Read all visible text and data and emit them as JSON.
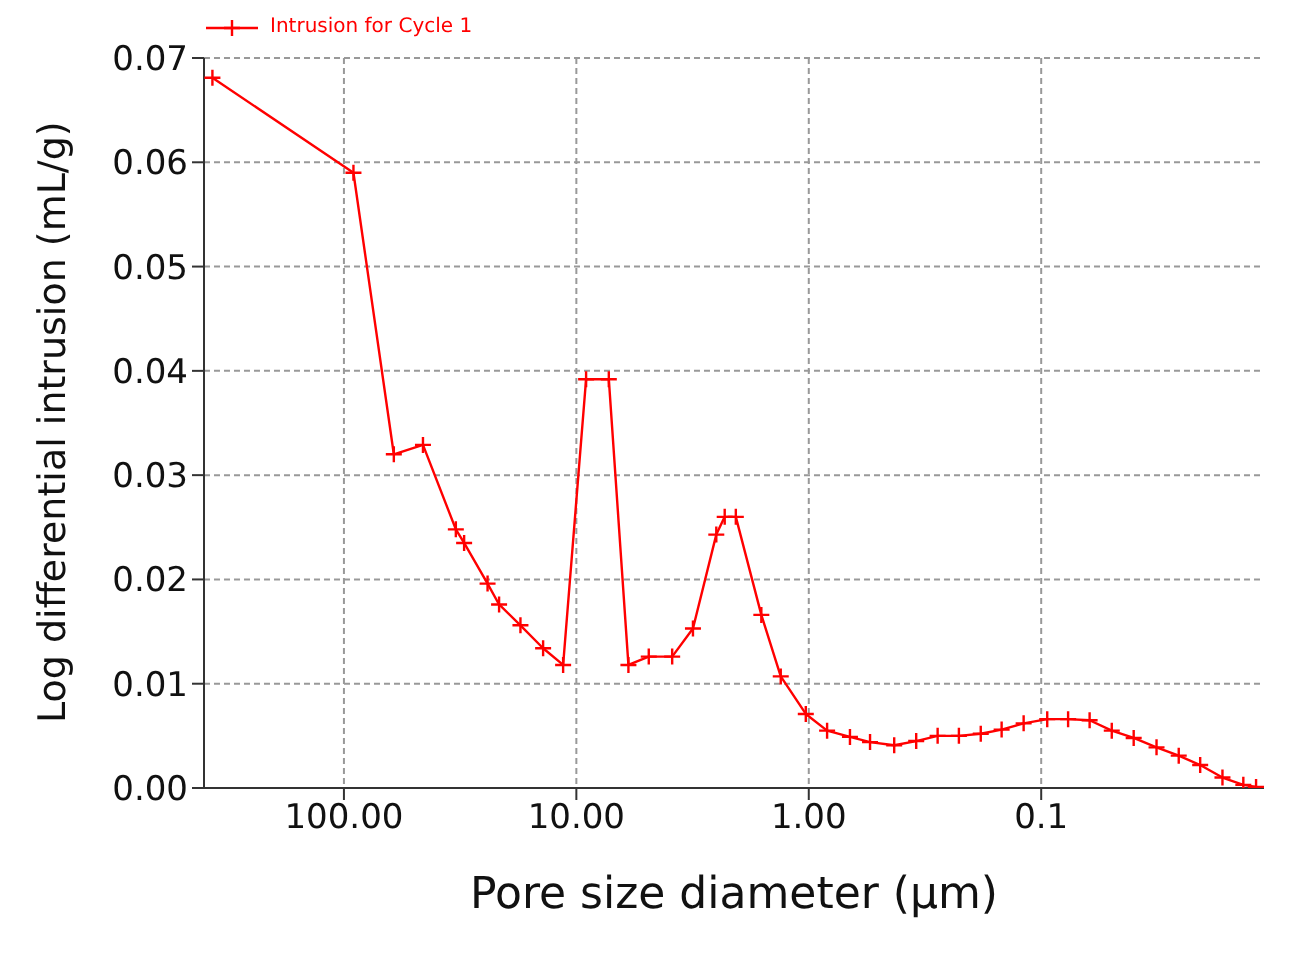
{
  "chart_data": {
    "type": "line",
    "xlabel": "Pore size diameter (μm)",
    "ylabel": "Log differential intrusion (mL/g)",
    "xlim": [
      400,
      0.011
    ],
    "log": "x",
    "xticks": [
      {
        "value": 100,
        "label": "100.00"
      },
      {
        "value": 10,
        "label": "10.00"
      },
      {
        "value": 1,
        "label": "1.00"
      },
      0.1
    ],
    "ylim": [
      0,
      0.07
    ],
    "yticks": [
      {
        "value": 0,
        "label": "0.00"
      },
      {
        "value": 0.01,
        "label": "0.01"
      },
      {
        "value": 0.02,
        "label": "0.02"
      },
      {
        "value": 0.03,
        "label": "0.03"
      },
      {
        "value": 0.04,
        "label": "0.04"
      },
      {
        "value": 0.05,
        "label": "0.05"
      },
      {
        "value": 0.06,
        "label": "0.06"
      },
      {
        "value": 0.07,
        "label": "0.07"
      }
    ],
    "grid": true,
    "legend": "top left",
    "marker": "cross",
    "line_style": "solid",
    "series": [
      {
        "name": "Intrusion for Cycle 1",
        "color": "#ff0000",
        "x": [
          368,
          91,
          61,
          45.7,
          33,
          30.4,
          24.1,
          21.5,
          17.4,
          13.9,
          11.4,
          9.08,
          7.25,
          5.97,
          4.88,
          3.87,
          3.15,
          2.5,
          2.3,
          2.06,
          1.6,
          1.32,
          1.03,
          0.834,
          0.665,
          0.545,
          0.429,
          0.345,
          0.279,
          0.226,
          0.182,
          0.148,
          0.119,
          0.0942,
          0.0766,
          0.0619,
          0.0497,
          0.04,
          0.0319,
          0.0256,
          0.0207,
          0.0166,
          0.0135,
          0.0119
        ],
        "values": [
          0.0681,
          0.059,
          0.032,
          0.0329,
          0.0248,
          0.0235,
          0.0196,
          0.0176,
          0.0156,
          0.0134,
          0.0118,
          0.0392,
          0.0392,
          0.0118,
          0.0126,
          0.0126,
          0.0153,
          0.0243,
          0.026,
          0.026,
          0.0166,
          0.0107,
          0.0071,
          0.0055,
          0.0049,
          0.0044,
          0.0041,
          0.0045,
          0.005,
          0.005,
          0.0052,
          0.0056,
          0.0062,
          0.0066,
          0.0066,
          0.0065,
          0.0055,
          0.0048,
          0.0039,
          0.0031,
          0.0022,
          0.001,
          0.0003,
          0.0001
        ]
      }
    ]
  }
}
